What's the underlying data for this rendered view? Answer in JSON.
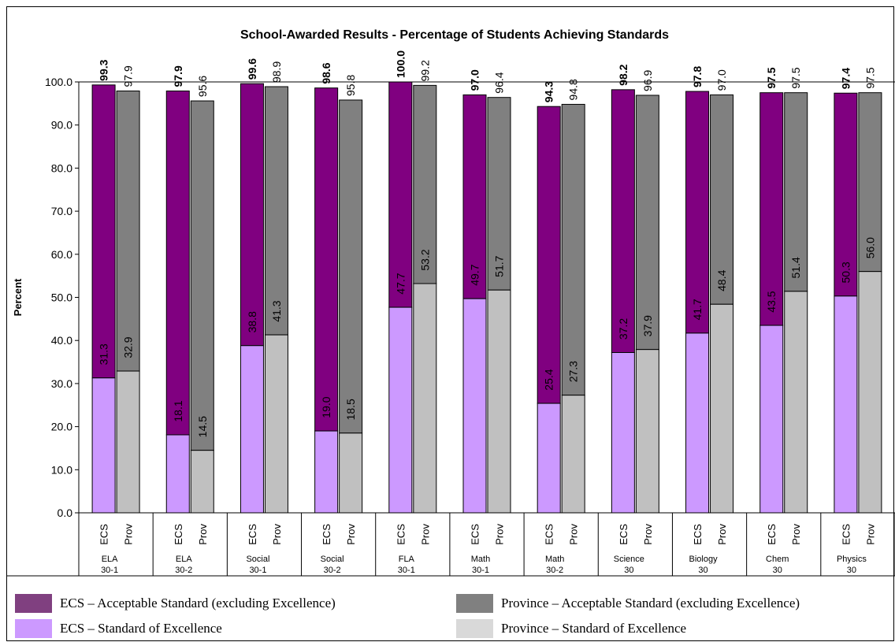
{
  "chart_data": {
    "type": "bar",
    "stacked": true,
    "title": "School-Awarded Results - Percentage of Students Achieving Standards",
    "ylabel": "Percent",
    "ylim": [
      0,
      100
    ],
    "yticks": [
      "0.0",
      "10.0",
      "20.0",
      "30.0",
      "40.0",
      "50.0",
      "60.0",
      "70.0",
      "80.0",
      "90.0",
      "100.0"
    ],
    "grid": false,
    "legend_position": "bottom",
    "groups": [
      {
        "name": [
          "ELA",
          "30-1"
        ],
        "ecs": {
          "total": "99.3",
          "excellence": "31.3"
        },
        "prov": {
          "total": "97.9",
          "excellence": "32.9"
        }
      },
      {
        "name": [
          "ELA",
          "30-2"
        ],
        "ecs": {
          "total": "97.9",
          "excellence": "18.1"
        },
        "prov": {
          "total": "95.6",
          "excellence": "14.5"
        }
      },
      {
        "name": [
          "Social",
          "30-1"
        ],
        "ecs": {
          "total": "99.6",
          "excellence": "38.8"
        },
        "prov": {
          "total": "98.9",
          "excellence": "41.3"
        }
      },
      {
        "name": [
          "Social",
          "30-2"
        ],
        "ecs": {
          "total": "98.6",
          "excellence": "19.0"
        },
        "prov": {
          "total": "95.8",
          "excellence": "18.5"
        }
      },
      {
        "name": [
          "FLA",
          "30-1"
        ],
        "ecs": {
          "total": "100.0",
          "excellence": "47.7"
        },
        "prov": {
          "total": "99.2",
          "excellence": "53.2"
        }
      },
      {
        "name": [
          "Math",
          "30-1"
        ],
        "ecs": {
          "total": "97.0",
          "excellence": "49.7"
        },
        "prov": {
          "total": "96.4",
          "excellence": "51.7"
        }
      },
      {
        "name": [
          "Math",
          "30-2"
        ],
        "ecs": {
          "total": "94.3",
          "excellence": "25.4"
        },
        "prov": {
          "total": "94.8",
          "excellence": "27.3"
        }
      },
      {
        "name": [
          "Science",
          "30"
        ],
        "ecs": {
          "total": "98.2",
          "excellence": "37.2"
        },
        "prov": {
          "total": "96.9",
          "excellence": "37.9"
        }
      },
      {
        "name": [
          "Biology",
          "30"
        ],
        "ecs": {
          "total": "97.8",
          "excellence": "41.7"
        },
        "prov": {
          "total": "97.0",
          "excellence": "48.4"
        }
      },
      {
        "name": [
          "Chem",
          "30"
        ],
        "ecs": {
          "total": "97.5",
          "excellence": "43.5"
        },
        "prov": {
          "total": "97.5",
          "excellence": "51.4"
        }
      },
      {
        "name": [
          "Physics",
          "30"
        ],
        "ecs": {
          "total": "97.4",
          "excellence": "50.3"
        },
        "prov": {
          "total": "97.5",
          "excellence": "56.0"
        }
      }
    ],
    "bar_labels": [
      "ECS",
      "Prov"
    ],
    "colors": {
      "ecs_acceptable": "#800080",
      "ecs_excellence": "#cc99ff",
      "prov_acceptable": "#808080",
      "prov_excellence": "#c0c0c0"
    },
    "legend": [
      {
        "key": "ecs_acceptable",
        "label": "ECS – Acceptable Standard (excluding Excellence)",
        "color": "#804080"
      },
      {
        "key": "prov_acceptable",
        "label": "Province – Acceptable Standard (excluding Excellence)",
        "color": "#808080"
      },
      {
        "key": "ecs_excellence",
        "label": "ECS – Standard of Excellence",
        "color": "#cc99ff"
      },
      {
        "key": "prov_excellence",
        "label": "Province – Standard of Excellence",
        "color": "#d9d9d9"
      }
    ]
  }
}
